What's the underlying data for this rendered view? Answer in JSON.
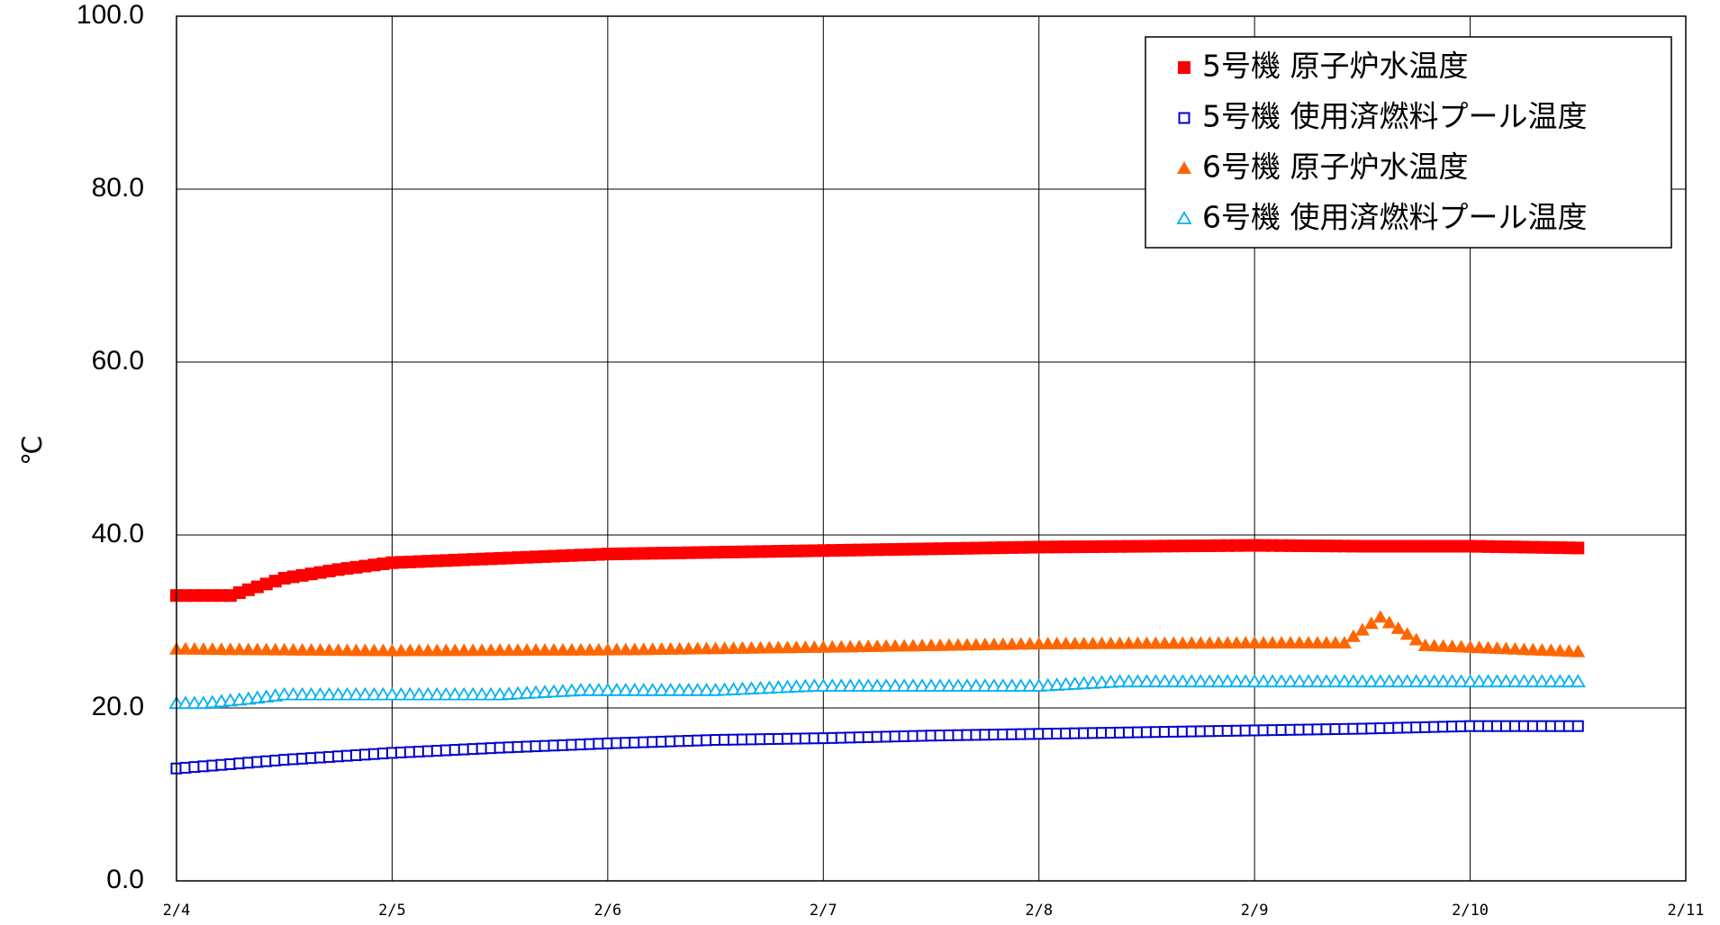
{
  "chart_data": {
    "type": "scatter",
    "ylabel": "℃",
    "ylim": [
      0,
      100
    ],
    "yticks": [
      "0.0",
      "20.0",
      "40.0",
      "60.0",
      "80.0",
      "100.0"
    ],
    "xlim": [
      "2/4",
      "2/11"
    ],
    "xticks": [
      "2/4",
      "2/5",
      "2/6",
      "2/7",
      "2/8",
      "2/9",
      "2/10",
      "2/11"
    ],
    "grid": true,
    "legend_position": "top-right",
    "series": [
      {
        "name": "5号機 原子炉水温度",
        "marker": "filled-square",
        "color": "#ff0000",
        "x": [
          "2/4 00:00",
          "2/4 06:00",
          "2/4 12:00",
          "2/4 18:00",
          "2/5 00:00",
          "2/5 12:00",
          "2/6 00:00",
          "2/6 12:00",
          "2/7 00:00",
          "2/7 12:00",
          "2/8 00:00",
          "2/8 12:00",
          "2/9 00:00",
          "2/9 12:00",
          "2/10 00:00",
          "2/10 12:00"
        ],
        "y": [
          33.0,
          33.0,
          35.0,
          36.0,
          36.8,
          37.3,
          37.8,
          38.0,
          38.2,
          38.4,
          38.6,
          38.7,
          38.8,
          38.7,
          38.7,
          38.5
        ]
      },
      {
        "name": "5号機 使用済燃料プール温度",
        "marker": "hollow-square",
        "color": "#0000cc",
        "x": [
          "2/4 00:00",
          "2/4 12:00",
          "2/5 00:00",
          "2/5 12:00",
          "2/6 00:00",
          "2/6 12:00",
          "2/7 00:00",
          "2/7 12:00",
          "2/8 00:00",
          "2/8 12:00",
          "2/9 00:00",
          "2/9 12:00",
          "2/10 00:00",
          "2/10 12:00"
        ],
        "y": [
          13.0,
          14.0,
          14.8,
          15.4,
          15.9,
          16.3,
          16.5,
          16.8,
          17.0,
          17.2,
          17.4,
          17.6,
          17.9,
          17.9
        ]
      },
      {
        "name": "6号機 原子炉水温度",
        "marker": "filled-triangle",
        "color": "#ff6600",
        "x": [
          "2/4 00:00",
          "2/5 00:00",
          "2/6 00:00",
          "2/7 00:00",
          "2/8 00:00",
          "2/9 00:00",
          "2/9 10:00",
          "2/9 14:00",
          "2/9 19:00",
          "2/10 00:00",
          "2/10 12:00"
        ],
        "y": [
          26.8,
          26.6,
          26.7,
          27.0,
          27.4,
          27.5,
          27.5,
          30.5,
          27.2,
          27.0,
          26.5
        ]
      },
      {
        "name": "6号機 使用済燃料プール温度",
        "marker": "hollow-triangle",
        "color": "#00b0f0",
        "x": [
          "2/4 00:00",
          "2/4 03:00",
          "2/4 08:00",
          "2/4 12:00",
          "2/5 12:00",
          "2/5 21:00",
          "2/6 12:00",
          "2/6 23:00",
          "2/7 12:00",
          "2/8 00:00",
          "2/8 09:00",
          "2/9 00:00",
          "2/10 00:00",
          "2/10 12:00"
        ],
        "y": [
          20.5,
          20.5,
          21.0,
          21.5,
          21.5,
          22.0,
          22.0,
          22.5,
          22.5,
          22.5,
          23.0,
          23.0,
          23.0,
          23.0
        ]
      }
    ]
  }
}
